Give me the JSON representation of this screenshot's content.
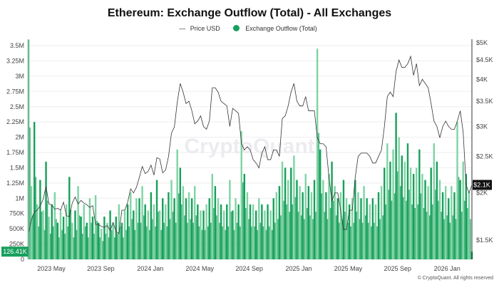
{
  "title": "Ethereum: Exchange Outflow (Total) - All Exchanges",
  "legend": {
    "price": "Price USD",
    "outflow": "Exchange Outflow (Total)"
  },
  "watermark": "CryptoQuant",
  "copyright": "© CryptoQuant. All rights reserved",
  "colors": {
    "bar_dark": "#16a05a",
    "bar_light": "#7fd3a4",
    "price": "#333333",
    "accent": "#17a05d"
  },
  "chart_data": {
    "type": "bar+line",
    "title": "Ethereum: Exchange Outflow (Total) - All Exchanges",
    "x_ticks": [
      "2023 May",
      "2023 Sep",
      "2024 Jan",
      "2024 May",
      "2024 Sep",
      "2025 Jan",
      "2025 May",
      "2025 Sep",
      "2026 Jan"
    ],
    "left_axis": {
      "ticks": [
        "0",
        "250K",
        "500K",
        "750K",
        "1M",
        "1.25M",
        "1.5M",
        "1.75M",
        "2M",
        "2.25M",
        "2.5M",
        "2.75M",
        "3M",
        "3.25M",
        "3.5M"
      ],
      "range": [
        0,
        3500000
      ]
    },
    "right_axis": {
      "scale": "log",
      "ticks": [
        {
          "v": 1500,
          "l": "$1.5K"
        },
        {
          "v": 2000,
          "l": "$2K"
        },
        {
          "v": 2500,
          "l": "$2.5K"
        },
        {
          "v": 3000,
          "l": "$3K"
        },
        {
          "v": 3500,
          "l": "$3.5K"
        },
        {
          "v": 4000,
          "l": "$4K"
        },
        {
          "v": 4500,
          "l": "$4.5K"
        },
        {
          "v": 5000,
          "l": "$5K"
        }
      ],
      "range": [
        1500,
        5000
      ]
    },
    "current": {
      "outflow_label": "126.41K",
      "price_label": "$2.1K",
      "price": 2100,
      "outflow": 126410
    },
    "series": [
      {
        "name": "Exchange Outflow (Total)",
        "unit": "M",
        "values": [
          3.6,
          1.2,
          2.25,
          0.9,
          1.3,
          0.8,
          1.6,
          0.7,
          0.9,
          1.1,
          0.6,
          0.8,
          0.7,
          0.9,
          1.35,
          0.6,
          0.8,
          1.2,
          0.7,
          0.9,
          0.6,
          1.0,
          0.7,
          1.05,
          0.6,
          0.5,
          0.7,
          0.6,
          0.8,
          0.6,
          0.7,
          0.9,
          0.6,
          0.8,
          0.9,
          1.1,
          0.8,
          1.0,
          1.0,
          1.2,
          0.9,
          0.8,
          1.1,
          0.9,
          1.3,
          0.8,
          1.0,
          0.9,
          1.1,
          1.3,
          1.0,
          1.8,
          1.5,
          1.2,
          1.0,
          1.1,
          1.0,
          1.2,
          0.9,
          0.8,
          0.8,
          0.9,
          1.0,
          1.4,
          1.2,
          1.0,
          0.9,
          0.8,
          0.9,
          1.3,
          0.8,
          1.0,
          0.9,
          2.1,
          1.4,
          1.1,
          0.9,
          0.9,
          0.8,
          1.0,
          0.9,
          0.8,
          0.9,
          0.8,
          1.0,
          1.1,
          1.2,
          1.6,
          1.5,
          1.3,
          1.5,
          1.7,
          1.3,
          1.2,
          1.1,
          1.4,
          1.2,
          1.1,
          1.3,
          3.45,
          1.8,
          1.3,
          1.1,
          1.4,
          1.6,
          1.2,
          1.0,
          1.1,
          1.3,
          1.0,
          0.9,
          1.0,
          1.3,
          1.1,
          1.0,
          1.2,
          1.0,
          0.9,
          1.0,
          0.9,
          1.1,
          1.2,
          1.5,
          1.9,
          1.6,
          1.8,
          2.4,
          2.0,
          1.7,
          1.6,
          1.9,
          1.5,
          1.4,
          1.5,
          1.8,
          1.4,
          1.3,
          1.2,
          1.5,
          1.9,
          1.6,
          1.3,
          1.1,
          1.2,
          1.0,
          1.2,
          1.1,
          2.25,
          1.3,
          1.6,
          1.4,
          1.1,
          0.126
        ]
      },
      {
        "name": "Price USD",
        "unit": "USD",
        "values": [
          1560,
          1700,
          1780,
          1800,
          1850,
          1920,
          2080,
          1870,
          1860,
          1810,
          1820,
          1800,
          1890,
          1740,
          1730,
          1880,
          1950,
          1870,
          1910,
          1880,
          1860,
          1830,
          1850,
          1650,
          1650,
          1630,
          1620,
          1640,
          1590,
          1670,
          1580,
          1560,
          1800,
          1800,
          1890,
          2050,
          2000,
          2070,
          2200,
          2350,
          2250,
          2280,
          2370,
          2230,
          2480,
          2460,
          2260,
          2300,
          2500,
          2880,
          2990,
          3480,
          3900,
          3700,
          3450,
          3500,
          3300,
          3050,
          3100,
          3200,
          3000,
          2950,
          3100,
          3800,
          3800,
          3700,
          3500,
          3450,
          3400,
          3000,
          3350,
          3300,
          3250,
          2700,
          2600,
          2650,
          2600,
          2450,
          2400,
          2330,
          2550,
          2650,
          2450,
          2450,
          2600,
          2600,
          2500,
          3150,
          3200,
          3400,
          3700,
          3900,
          3500,
          3400,
          3400,
          3600,
          3300,
          3300,
          3300,
          2800,
          2700,
          2700,
          2650,
          2200,
          1900,
          2000,
          2000,
          1800,
          1600,
          1600,
          1800,
          1800,
          2200,
          2500,
          2550,
          2550,
          2550,
          2500,
          2400,
          2400,
          2500,
          2600,
          3000,
          3600,
          3700,
          3600,
          4200,
          4500,
          4300,
          4300,
          4400,
          4600,
          4100,
          4400,
          3850,
          4000,
          3900,
          3800,
          3450,
          3100,
          3000,
          2800,
          3000,
          3100,
          3000,
          2950,
          2950,
          3100,
          3300,
          2900,
          2100,
          2000,
          2100
        ]
      }
    ]
  }
}
